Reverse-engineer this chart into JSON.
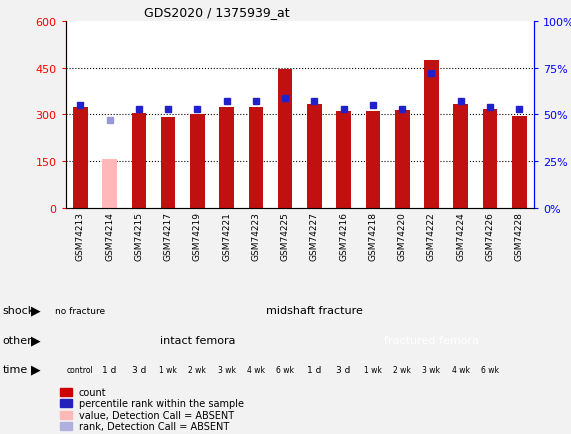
{
  "title": "GDS2020 / 1375939_at",
  "samples": [
    "GSM74213",
    "GSM74214",
    "GSM74215",
    "GSM74217",
    "GSM74219",
    "GSM74221",
    "GSM74223",
    "GSM74225",
    "GSM74227",
    "GSM74216",
    "GSM74218",
    "GSM74220",
    "GSM74222",
    "GSM74224",
    "GSM74226",
    "GSM74228"
  ],
  "red_bars": [
    325,
    0,
    305,
    293,
    300,
    325,
    325,
    445,
    332,
    310,
    312,
    315,
    475,
    335,
    318,
    295
  ],
  "pink_bar_idx": 1,
  "pink_bar_val": 158,
  "blue_dots_pct": [
    55,
    null,
    53,
    53,
    53,
    57,
    57,
    59,
    57,
    53,
    55,
    53,
    72,
    57,
    54,
    53
  ],
  "light_blue_dot_idx": 1,
  "light_blue_dot_pct": 47,
  "ylim_left": [
    0,
    600
  ],
  "ylim_right": [
    0,
    100
  ],
  "yticks_left": [
    0,
    150,
    300,
    450,
    600
  ],
  "yticks_right": [
    0,
    25,
    50,
    75,
    100
  ],
  "ytick_labels_right": [
    "0%",
    "25%",
    "50%",
    "75%",
    "100%"
  ],
  "bg_color": "#f2f2f2",
  "plot_bg": "#ffffff",
  "shock_nofracture_color": "#98e898",
  "shock_midshaft_color": "#55cc55",
  "other_intact_color": "#c0b8f0",
  "other_fractured_color": "#7b6abf",
  "time_colors": [
    "#ffd8d8",
    "#f8b8b0",
    "#f4a098",
    "#ef8878",
    "#eb7068",
    "#e55858",
    "#df4040",
    "#d82020",
    "#f8b8b0",
    "#f4a098",
    "#ef8878",
    "#eb7068",
    "#e55858",
    "#df4040",
    "#d82020"
  ],
  "time_labels": [
    "control",
    "1 d",
    "3 d",
    "1 wk",
    "2 wk",
    "3 wk",
    "4 wk",
    "6 wk",
    "1 d",
    "3 d",
    "1 wk",
    "2 wk",
    "3 wk",
    "4 wk",
    "6 wk"
  ],
  "red_bar_color": "#c01010",
  "pink_bar_color": "#ffb8b8",
  "blue_dot_color": "#2020cc",
  "light_blue_dot_color": "#9898d8",
  "legend_items": [
    {
      "color": "#cc0000",
      "label": "count"
    },
    {
      "color": "#2222bb",
      "label": "percentile rank within the sample"
    },
    {
      "color": "#ffb8b8",
      "label": "value, Detection Call = ABSENT"
    },
    {
      "color": "#b0b0e0",
      "label": "rank, Detection Call = ABSENT"
    }
  ]
}
